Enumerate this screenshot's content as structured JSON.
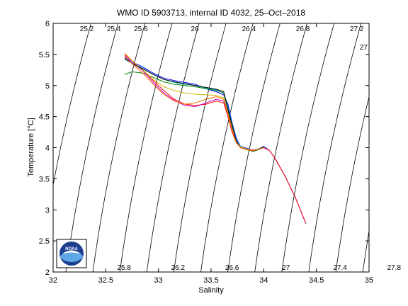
{
  "chart_data": {
    "type": "line",
    "title": "WMO ID 5903713, internal ID 4032, 25–Oct–2018",
    "xlabel": "Salinity",
    "ylabel": "Temperature [°C]",
    "xlim": [
      32,
      35
    ],
    "ylim": [
      2,
      6
    ],
    "x_ticks": [
      "32",
      "32.5",
      "33",
      "33.5",
      "34",
      "34.5",
      "35"
    ],
    "y_ticks": [
      "2",
      "2.5",
      "3",
      "3.5",
      "4",
      "4.5",
      "5",
      "5.5",
      "6"
    ],
    "grid": false,
    "legend": "none",
    "density_contours": {
      "values": [
        25.2,
        25.4,
        25.6,
        25.8,
        26,
        26.2,
        26.4,
        26.6,
        26.8,
        27,
        27.2,
        27.4,
        27.6,
        27.8
      ],
      "top_labels": [
        "25.2",
        "25.4",
        "25.6",
        "26",
        "26.4",
        "26.8",
        "27.2"
      ],
      "bottom_labels": [
        "25.8",
        "26.2",
        "26.6",
        "27",
        "27.4",
        "27.8"
      ],
      "right_labels": [
        "27"
      ],
      "color": "#000000"
    },
    "series": [
      {
        "color": "#0000ff",
        "points": [
          [
            32.68,
            5.45
          ],
          [
            32.75,
            5.38
          ],
          [
            32.85,
            5.3
          ],
          [
            32.95,
            5.2
          ],
          [
            33.05,
            5.12
          ],
          [
            33.15,
            5.08
          ],
          [
            33.25,
            5.05
          ],
          [
            33.35,
            5.02
          ],
          [
            33.45,
            4.95
          ],
          [
            33.55,
            4.9
          ],
          [
            33.62,
            4.85
          ],
          [
            33.66,
            4.7
          ],
          [
            33.7,
            4.4
          ],
          [
            33.74,
            4.15
          ],
          [
            33.78,
            4.02
          ],
          [
            33.82,
            4.0
          ],
          [
            33.86,
            3.98
          ],
          [
            33.9,
            3.95
          ],
          [
            33.95,
            3.98
          ],
          [
            34.0,
            4.02
          ],
          [
            34.05,
            3.96
          ],
          [
            34.1,
            3.85
          ],
          [
            34.2,
            3.55
          ],
          [
            34.3,
            3.2
          ],
          [
            34.4,
            2.78
          ]
        ]
      },
      {
        "color": "#008000",
        "points": [
          [
            32.68,
            5.18
          ],
          [
            32.75,
            5.22
          ],
          [
            32.85,
            5.2
          ],
          [
            32.95,
            5.13
          ],
          [
            33.05,
            5.06
          ],
          [
            33.15,
            5.02
          ],
          [
            33.25,
            5.0
          ],
          [
            33.35,
            4.98
          ],
          [
            33.45,
            4.95
          ],
          [
            33.55,
            4.92
          ],
          [
            33.62,
            4.88
          ],
          [
            33.66,
            4.6
          ],
          [
            33.7,
            4.35
          ],
          [
            33.74,
            4.1
          ],
          [
            33.78,
            4.0
          ],
          [
            33.82,
            3.98
          ],
          [
            33.86,
            3.96
          ],
          [
            33.9,
            3.94
          ],
          [
            33.95,
            3.97
          ],
          [
            34.0,
            4.0
          ]
        ]
      },
      {
        "color": "#ff0000",
        "points": [
          [
            32.68,
            5.5
          ],
          [
            32.75,
            5.4
          ],
          [
            32.85,
            5.25
          ],
          [
            32.95,
            5.08
          ],
          [
            33.05,
            4.92
          ],
          [
            33.15,
            4.78
          ],
          [
            33.25,
            4.7
          ],
          [
            33.35,
            4.68
          ],
          [
            33.45,
            4.7
          ],
          [
            33.55,
            4.75
          ],
          [
            33.62,
            4.72
          ],
          [
            33.66,
            4.5
          ],
          [
            33.7,
            4.25
          ],
          [
            33.74,
            4.08
          ],
          [
            33.78,
            4.0
          ],
          [
            33.82,
            3.98
          ],
          [
            33.86,
            3.97
          ],
          [
            33.9,
            3.96
          ],
          [
            33.95,
            3.98
          ],
          [
            34.0,
            4.0
          ],
          [
            34.05,
            3.96
          ],
          [
            34.1,
            3.85
          ],
          [
            34.2,
            3.55
          ],
          [
            34.3,
            3.2
          ],
          [
            34.4,
            2.78
          ]
        ]
      },
      {
        "color": "#00bfbf",
        "points": [
          [
            32.68,
            5.42
          ],
          [
            32.75,
            5.36
          ],
          [
            32.85,
            5.28
          ],
          [
            32.95,
            5.18
          ],
          [
            33.05,
            5.1
          ],
          [
            33.15,
            5.05
          ],
          [
            33.25,
            5.02
          ],
          [
            33.35,
            5.0
          ],
          [
            33.45,
            4.96
          ],
          [
            33.55,
            4.93
          ],
          [
            33.62,
            4.9
          ],
          [
            33.66,
            4.65
          ],
          [
            33.7,
            4.38
          ],
          [
            33.74,
            4.12
          ],
          [
            33.78,
            4.02
          ],
          [
            33.82,
            3.99
          ],
          [
            33.86,
            3.97
          ],
          [
            33.9,
            3.95
          ],
          [
            33.95,
            3.98
          ],
          [
            34.0,
            4.01
          ]
        ]
      },
      {
        "color": "#bf00bf",
        "points": [
          [
            32.68,
            5.48
          ],
          [
            32.75,
            5.38
          ],
          [
            32.85,
            5.24
          ],
          [
            32.95,
            5.05
          ],
          [
            33.05,
            4.88
          ],
          [
            33.15,
            4.76
          ],
          [
            33.25,
            4.68
          ],
          [
            33.35,
            4.66
          ],
          [
            33.45,
            4.72
          ],
          [
            33.55,
            4.78
          ],
          [
            33.62,
            4.75
          ],
          [
            33.66,
            4.55
          ],
          [
            33.7,
            4.3
          ],
          [
            33.74,
            4.1
          ],
          [
            33.78,
            4.01
          ],
          [
            33.82,
            3.99
          ],
          [
            33.86,
            3.97
          ],
          [
            33.9,
            3.96
          ],
          [
            33.95,
            3.98
          ],
          [
            34.0,
            4.0
          ]
        ]
      },
      {
        "color": "#d4b000",
        "points": [
          [
            32.68,
            5.52
          ],
          [
            32.75,
            5.4
          ],
          [
            32.85,
            5.25
          ],
          [
            32.95,
            5.1
          ],
          [
            33.05,
            4.98
          ],
          [
            33.15,
            4.92
          ],
          [
            33.25,
            4.88
          ],
          [
            33.35,
            4.86
          ],
          [
            33.45,
            4.85
          ],
          [
            33.55,
            4.84
          ],
          [
            33.62,
            4.8
          ],
          [
            33.66,
            4.55
          ],
          [
            33.7,
            4.3
          ],
          [
            33.74,
            4.1
          ],
          [
            33.78,
            4.01
          ],
          [
            33.82,
            3.99
          ],
          [
            33.86,
            3.97
          ],
          [
            33.9,
            3.95
          ],
          [
            33.95,
            3.98
          ],
          [
            34.0,
            4.0
          ]
        ]
      },
      {
        "color": "#000000",
        "points": [
          [
            32.68,
            5.44
          ],
          [
            32.75,
            5.35
          ],
          [
            32.85,
            5.27
          ],
          [
            32.95,
            5.18
          ],
          [
            33.05,
            5.1
          ],
          [
            33.15,
            5.06
          ],
          [
            33.25,
            5.03
          ],
          [
            33.35,
            5.0
          ],
          [
            33.45,
            4.97
          ],
          [
            33.55,
            4.94
          ],
          [
            33.62,
            4.9
          ],
          [
            33.66,
            4.62
          ],
          [
            33.7,
            4.36
          ],
          [
            33.74,
            4.1
          ],
          [
            33.78,
            4.0
          ],
          [
            33.82,
            3.98
          ],
          [
            33.86,
            3.96
          ],
          [
            33.9,
            3.95
          ],
          [
            33.95,
            3.98
          ],
          [
            34.0,
            4.01
          ]
        ]
      },
      {
        "color": "#ff6600",
        "points": [
          [
            32.68,
            5.46
          ],
          [
            32.75,
            5.35
          ],
          [
            32.85,
            5.2
          ],
          [
            32.95,
            5.02
          ],
          [
            33.05,
            4.86
          ],
          [
            33.15,
            4.75
          ],
          [
            33.25,
            4.7
          ],
          [
            33.35,
            4.72
          ],
          [
            33.45,
            4.78
          ],
          [
            33.55,
            4.82
          ],
          [
            33.62,
            4.78
          ],
          [
            33.66,
            4.55
          ],
          [
            33.7,
            4.28
          ],
          [
            33.74,
            4.08
          ],
          [
            33.78,
            4.0
          ],
          [
            33.82,
            3.98
          ],
          [
            33.86,
            3.96
          ],
          [
            33.9,
            3.95
          ],
          [
            33.95,
            3.98
          ],
          [
            34.0,
            4.0
          ]
        ]
      }
    ]
  },
  "logo": {
    "text": "NOAA",
    "colors": {
      "dark_blue": "#1d3f8f",
      "light_blue": "#5fa8e8",
      "white": "#ffffff"
    }
  }
}
